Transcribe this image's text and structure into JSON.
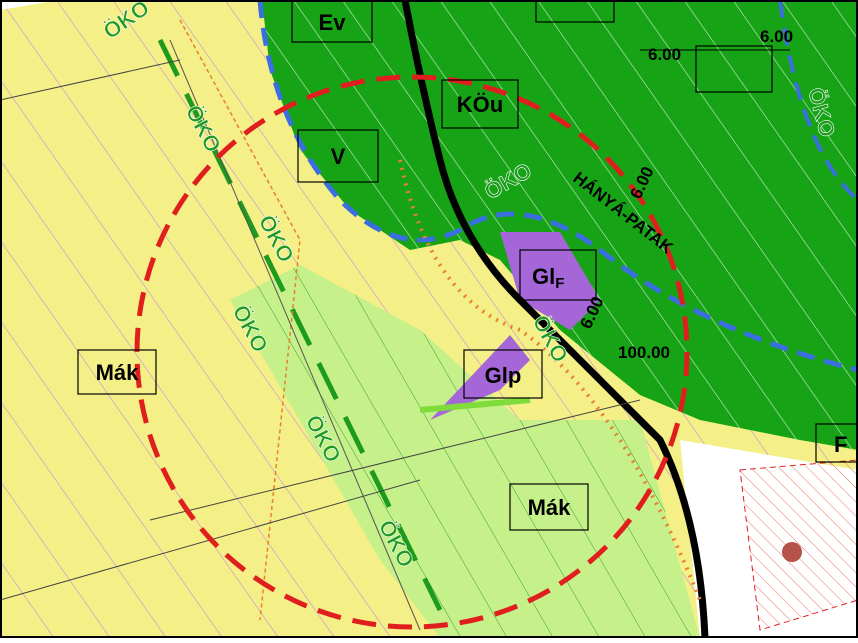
{
  "zones": [
    {
      "label": "Ev"
    },
    {
      "label": "KÖu"
    },
    {
      "label": "V"
    },
    {
      "label": "Gl",
      "sub": "F"
    },
    {
      "label": "Glp"
    },
    {
      "label": "Mák"
    },
    {
      "label": "Mák"
    },
    {
      "label": "F"
    }
  ],
  "eco_labels": [
    "ÖKO",
    "ÖKO",
    "ÖKO",
    "ÖKO",
    "ÖKO",
    "ÖKO",
    "ÖKO",
    "ÖKO",
    "ÖKO"
  ],
  "stream": "HÁNYÁ-PATAK",
  "dimensions": [
    "6.00",
    "6.00",
    "6.00",
    "6.00",
    "100.00"
  ]
}
